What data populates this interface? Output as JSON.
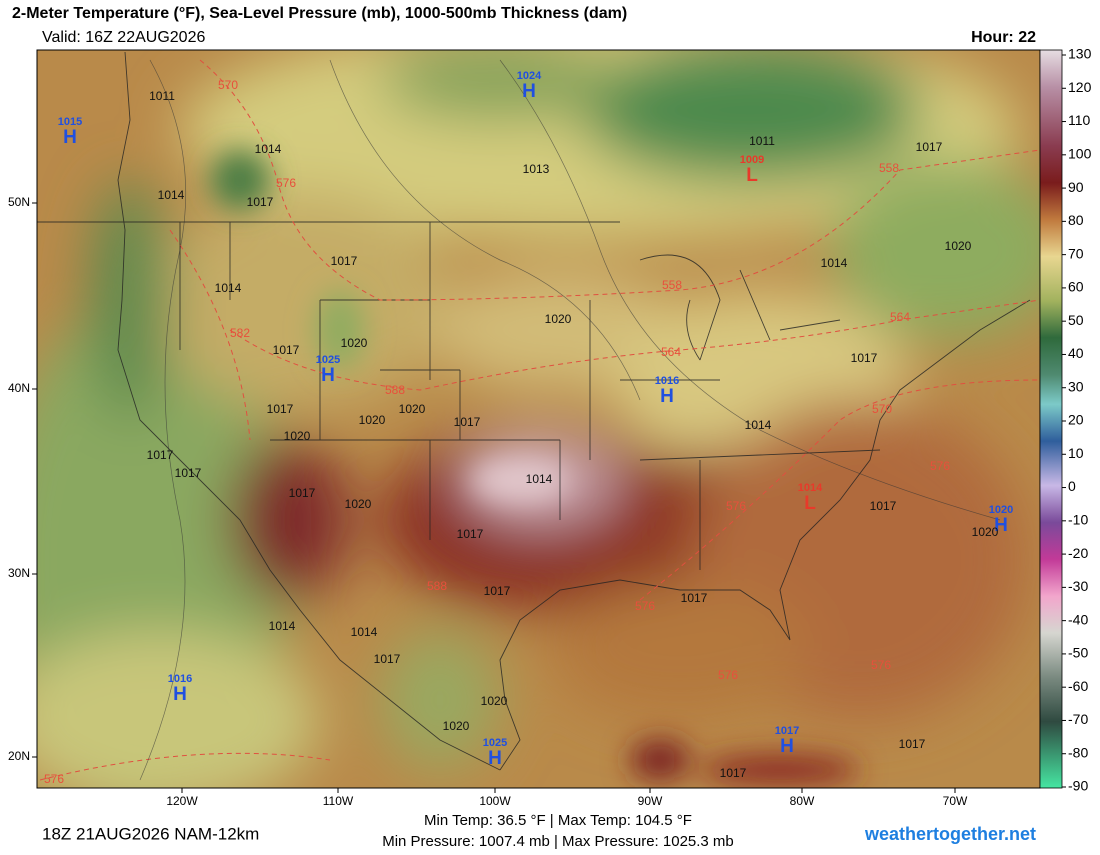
{
  "header": {
    "title": "2-Meter Temperature (°F), Sea-Level Pressure (mb), 1000-500mb Thickness (dam)",
    "valid": "Valid: 16Z 22AUG2026",
    "hour": "Hour: 22"
  },
  "colorbar": {
    "ticks": [
      130,
      120,
      110,
      100,
      90,
      80,
      70,
      60,
      50,
      40,
      30,
      20,
      10,
      0,
      -10,
      -20,
      -30,
      -40,
      -50,
      -60,
      -70,
      -80,
      -90
    ]
  },
  "axes": {
    "lat": [
      "50N",
      "40N",
      "30N",
      "20N"
    ],
    "lon": [
      "120W",
      "110W",
      "100W",
      "90W",
      "80W",
      "70W"
    ]
  },
  "centers": [
    {
      "letter": "H",
      "pressure": "1015"
    },
    {
      "letter": "H",
      "pressure": "1024"
    },
    {
      "letter": "H",
      "pressure": "1025"
    },
    {
      "letter": "H",
      "pressure": "1016"
    },
    {
      "letter": "L",
      "pressure": "1009"
    },
    {
      "letter": "L",
      "pressure": "1014"
    },
    {
      "letter": "H",
      "pressure": "1020"
    },
    {
      "letter": "H",
      "pressure": "1016"
    },
    {
      "letter": "H",
      "pressure": "1017"
    },
    {
      "letter": "H",
      "pressure": "1025"
    }
  ],
  "isobar_labels": [
    "1011",
    "1014",
    "1014",
    "1017",
    "1013",
    "1017",
    "1014",
    "1020",
    "1020",
    "1017",
    "1017",
    "1020",
    "1020",
    "1017",
    "1020",
    "1017",
    "1017",
    "1014",
    "1017",
    "1020",
    "1017",
    "1017",
    "1017",
    "1014",
    "1017",
    "1014",
    "1020",
    "1017",
    "1011",
    "1017",
    "1020",
    "1014",
    "1014",
    "1017",
    "1020",
    "1020",
    "1017",
    "1017"
  ],
  "thickness_labels": [
    "570",
    "576",
    "582",
    "588",
    "564",
    "558",
    "564",
    "570",
    "576",
    "576",
    "558",
    "576",
    "588",
    "576",
    "576",
    "576"
  ],
  "footer": {
    "run": "18Z 21AUG2026 NAM-12km",
    "temps": "Min Temp:  36.5 °F | Max Temp: 104.5 °F",
    "pressures": "Min Pressure: 1007.4 mb | Max Pressure: 1025.3 mb",
    "site": "weathertogether.net"
  }
}
